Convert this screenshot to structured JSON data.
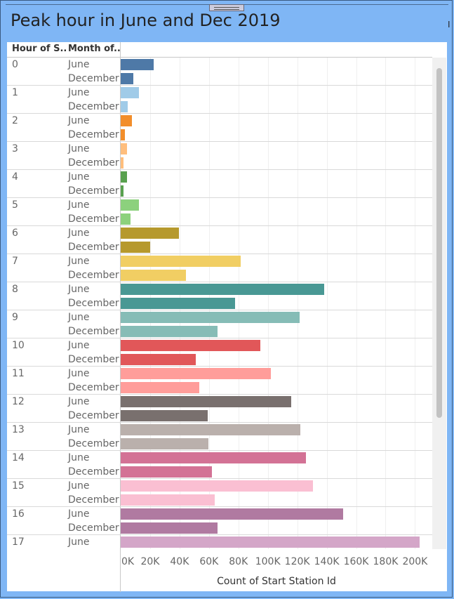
{
  "title": "Peak hour in June and Dec 2019",
  "side_char": "I",
  "columns": {
    "hour": "Hour of S..",
    "month": "Month of.."
  },
  "chart_data": {
    "type": "bar",
    "orientation": "horizontal",
    "xlabel": "Count of Start Station Id",
    "xlim": [
      0,
      210000
    ],
    "ticks": [
      {
        "v": 0,
        "label": "0K"
      },
      {
        "v": 20000,
        "label": "20K"
      },
      {
        "v": 40000,
        "label": "40K"
      },
      {
        "v": 60000,
        "label": "60K"
      },
      {
        "v": 80000,
        "label": "80K"
      },
      {
        "v": 100000,
        "label": "100K"
      },
      {
        "v": 120000,
        "label": "120K"
      },
      {
        "v": 140000,
        "label": "140K"
      },
      {
        "v": 160000,
        "label": "160K"
      },
      {
        "v": 180000,
        "label": "180K"
      },
      {
        "v": 200000,
        "label": "200K"
      }
    ],
    "grid": true,
    "groups": [
      {
        "hour": "0",
        "rows": [
          {
            "month": "June",
            "value": 22500,
            "color": "#4e79a7"
          },
          {
            "month": "December",
            "value": 8500,
            "color": "#4e79a7"
          }
        ]
      },
      {
        "hour": "1",
        "rows": [
          {
            "month": "June",
            "value": 12500,
            "color": "#a0cbe8"
          },
          {
            "month": "December",
            "value": 4800,
            "color": "#a0cbe8"
          }
        ]
      },
      {
        "hour": "2",
        "rows": [
          {
            "month": "June",
            "value": 7500,
            "color": "#f28e2b"
          },
          {
            "month": "December",
            "value": 2900,
            "color": "#f28e2b"
          }
        ]
      },
      {
        "hour": "3",
        "rows": [
          {
            "month": "June",
            "value": 4500,
            "color": "#ffbe7d"
          },
          {
            "month": "December",
            "value": 1700,
            "color": "#ffbe7d"
          }
        ]
      },
      {
        "hour": "4",
        "rows": [
          {
            "month": "June",
            "value": 4500,
            "color": "#59a14f"
          },
          {
            "month": "December",
            "value": 1800,
            "color": "#59a14f"
          }
        ]
      },
      {
        "hour": "5",
        "rows": [
          {
            "month": "June",
            "value": 12500,
            "color": "#8cd17d"
          },
          {
            "month": "December",
            "value": 6500,
            "color": "#8cd17d"
          }
        ]
      },
      {
        "hour": "6",
        "rows": [
          {
            "month": "June",
            "value": 39500,
            "color": "#b6992d"
          },
          {
            "month": "December",
            "value": 20000,
            "color": "#b6992d"
          }
        ]
      },
      {
        "hour": "7",
        "rows": [
          {
            "month": "June",
            "value": 81500,
            "color": "#f1ce63"
          },
          {
            "month": "December",
            "value": 44500,
            "color": "#f1ce63"
          }
        ]
      },
      {
        "hour": "8",
        "rows": [
          {
            "month": "June",
            "value": 138500,
            "color": "#499894"
          },
          {
            "month": "December",
            "value": 77500,
            "color": "#499894"
          }
        ]
      },
      {
        "hour": "9",
        "rows": [
          {
            "month": "June",
            "value": 121500,
            "color": "#86bcb6"
          },
          {
            "month": "December",
            "value": 66000,
            "color": "#86bcb6"
          }
        ]
      },
      {
        "hour": "10",
        "rows": [
          {
            "month": "June",
            "value": 95000,
            "color": "#e15759"
          },
          {
            "month": "December",
            "value": 51000,
            "color": "#e15759"
          }
        ]
      },
      {
        "hour": "11",
        "rows": [
          {
            "month": "June",
            "value": 102000,
            "color": "#ff9d9a"
          },
          {
            "month": "December",
            "value": 53500,
            "color": "#ff9d9a"
          }
        ]
      },
      {
        "hour": "12",
        "rows": [
          {
            "month": "June",
            "value": 116000,
            "color": "#79706e"
          },
          {
            "month": "December",
            "value": 59000,
            "color": "#79706e"
          }
        ]
      },
      {
        "hour": "13",
        "rows": [
          {
            "month": "June",
            "value": 122000,
            "color": "#bab0ac"
          },
          {
            "month": "December",
            "value": 59500,
            "color": "#bab0ac"
          }
        ]
      },
      {
        "hour": "14",
        "rows": [
          {
            "month": "June",
            "value": 126000,
            "color": "#d37295"
          },
          {
            "month": "December",
            "value": 62000,
            "color": "#d37295"
          }
        ]
      },
      {
        "hour": "15",
        "rows": [
          {
            "month": "June",
            "value": 130500,
            "color": "#fabfd2"
          },
          {
            "month": "December",
            "value": 64000,
            "color": "#fabfd2"
          }
        ]
      },
      {
        "hour": "16",
        "rows": [
          {
            "month": "June",
            "value": 151000,
            "color": "#b07aa1"
          },
          {
            "month": "December",
            "value": 66000,
            "color": "#b07aa1"
          }
        ]
      },
      {
        "hour": "17",
        "rows": [
          {
            "month": "June",
            "value": 203000,
            "color": "#d4a6c8"
          }
        ]
      }
    ]
  }
}
